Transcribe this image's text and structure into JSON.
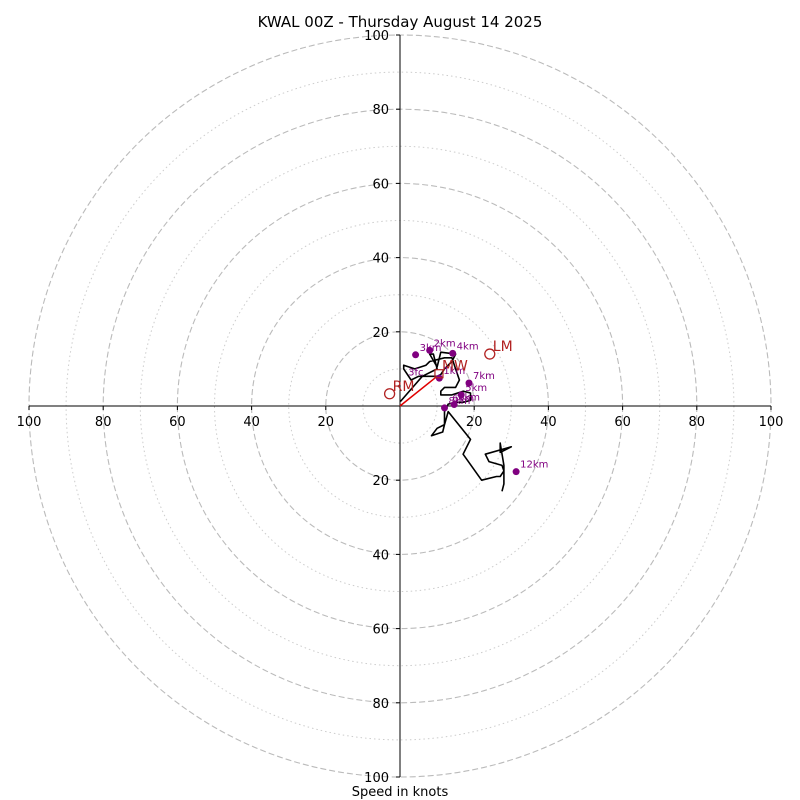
{
  "chart_data": {
    "type": "scatter",
    "title": "KWAL 00Z - Thursday August 14 2025",
    "xlabel": "Speed in knots",
    "ylabel": "",
    "xlim": [
      -100,
      100
    ],
    "ylim": [
      -100,
      100
    ],
    "ring_major": [
      20,
      40,
      60,
      80,
      100
    ],
    "ring_minor": [
      10,
      30,
      50,
      70,
      90
    ],
    "x_ticks": [
      {
        "value": -100,
        "label": "100"
      },
      {
        "value": -80,
        "label": "80"
      },
      {
        "value": -60,
        "label": "60"
      },
      {
        "value": -40,
        "label": "40"
      },
      {
        "value": -20,
        "label": "20"
      },
      {
        "value": 20,
        "label": "20"
      },
      {
        "value": 40,
        "label": "40"
      },
      {
        "value": 60,
        "label": "60"
      },
      {
        "value": 80,
        "label": "80"
      },
      {
        "value": 100,
        "label": "100"
      }
    ],
    "y_ticks": [
      {
        "value": 100,
        "label": "100"
      },
      {
        "value": 80,
        "label": "80"
      },
      {
        "value": 60,
        "label": "60"
      },
      {
        "value": 40,
        "label": "40"
      },
      {
        "value": 20,
        "label": "20"
      },
      {
        "value": -20,
        "label": "20"
      },
      {
        "value": -40,
        "label": "40"
      },
      {
        "value": -60,
        "label": "60"
      },
      {
        "value": -80,
        "label": "80"
      },
      {
        "value": -100,
        "label": "100"
      }
    ],
    "hodograph_line": [
      [
        0.1,
        1.2
      ],
      [
        6,
        8
      ],
      [
        10,
        10
      ],
      [
        9,
        14
      ],
      [
        8,
        14
      ],
      [
        10,
        10.5
      ],
      [
        11,
        14.5
      ],
      [
        15,
        14
      ],
      [
        14,
        12
      ],
      [
        12,
        10
      ],
      [
        11,
        8.5
      ],
      [
        10,
        8
      ],
      [
        5,
        8
      ],
      [
        3,
        7
      ],
      [
        1,
        10
      ],
      [
        1,
        11
      ],
      [
        4,
        10
      ],
      [
        7,
        11
      ],
      [
        8,
        12
      ],
      [
        12,
        13
      ],
      [
        14,
        13
      ],
      [
        15,
        10
      ],
      [
        16,
        7
      ],
      [
        15,
        5
      ],
      [
        12,
        5
      ],
      [
        11,
        4
      ],
      [
        11,
        3
      ],
      [
        14,
        3
      ],
      [
        17,
        4
      ],
      [
        19,
        3.5
      ],
      [
        19,
        1.5
      ],
      [
        17,
        1
      ],
      [
        15,
        1
      ],
      [
        13,
        0.5
      ],
      [
        12,
        -1.5
      ],
      [
        12,
        -5
      ],
      [
        10,
        -6
      ],
      [
        8.5,
        -8
      ],
      [
        11.5,
        -7
      ],
      [
        12,
        -5
      ],
      [
        13,
        -1.5
      ],
      [
        19,
        -9
      ],
      [
        17,
        -13
      ],
      [
        22,
        -20
      ],
      [
        26,
        -19
      ],
      [
        27,
        -19
      ],
      [
        28,
        -17.5
      ],
      [
        27.5,
        -16
      ],
      [
        24,
        -15
      ],
      [
        23,
        -13
      ],
      [
        30,
        -11
      ],
      [
        27,
        -12.5
      ],
      [
        27,
        -10
      ],
      [
        28,
        -16
      ],
      [
        28,
        -21
      ],
      [
        27.5,
        -23
      ]
    ],
    "height_markers": [
      {
        "label": "1km",
        "x": 10.6,
        "y": 7.5
      },
      {
        "label": "2km",
        "x": 8,
        "y": 15
      },
      {
        "label": "3km",
        "x": 4.2,
        "y": 13.8
      },
      {
        "label": "4km",
        "x": 14.2,
        "y": 14.2
      },
      {
        "label": "5km",
        "x": 16.5,
        "y": 3
      },
      {
        "label": "6km",
        "x": 14.6,
        "y": 0.4
      },
      {
        "label": "7km",
        "x": 18.6,
        "y": 6.2
      },
      {
        "label": "8km",
        "x": 12,
        "y": -0.5
      },
      {
        "label": "12km",
        "x": 31.3,
        "y": -17.7
      }
    ],
    "height_labels_extra": [
      {
        "label": "6km",
        "x": 13,
        "y": 0.1
      },
      {
        "label": "3fc",
        "x": 1.1,
        "y": 7.2
      }
    ],
    "storm_motions": [
      {
        "label": "RM",
        "x": -2.8,
        "y": 3.3
      },
      {
        "label": "LM",
        "x": 24.2,
        "y": 14
      },
      {
        "label": "MW",
        "x": 10.5,
        "y": 8.7
      }
    ],
    "shear_vector": {
      "from": [
        0,
        0
      ],
      "to": [
        10,
        8
      ]
    },
    "colors": {
      "hodograph": "#000000",
      "markers": "#800080",
      "storm_motion": "#b22222",
      "shear_vector": "#e00000",
      "grid": "#bbbbbb",
      "axes": "#000000"
    }
  }
}
